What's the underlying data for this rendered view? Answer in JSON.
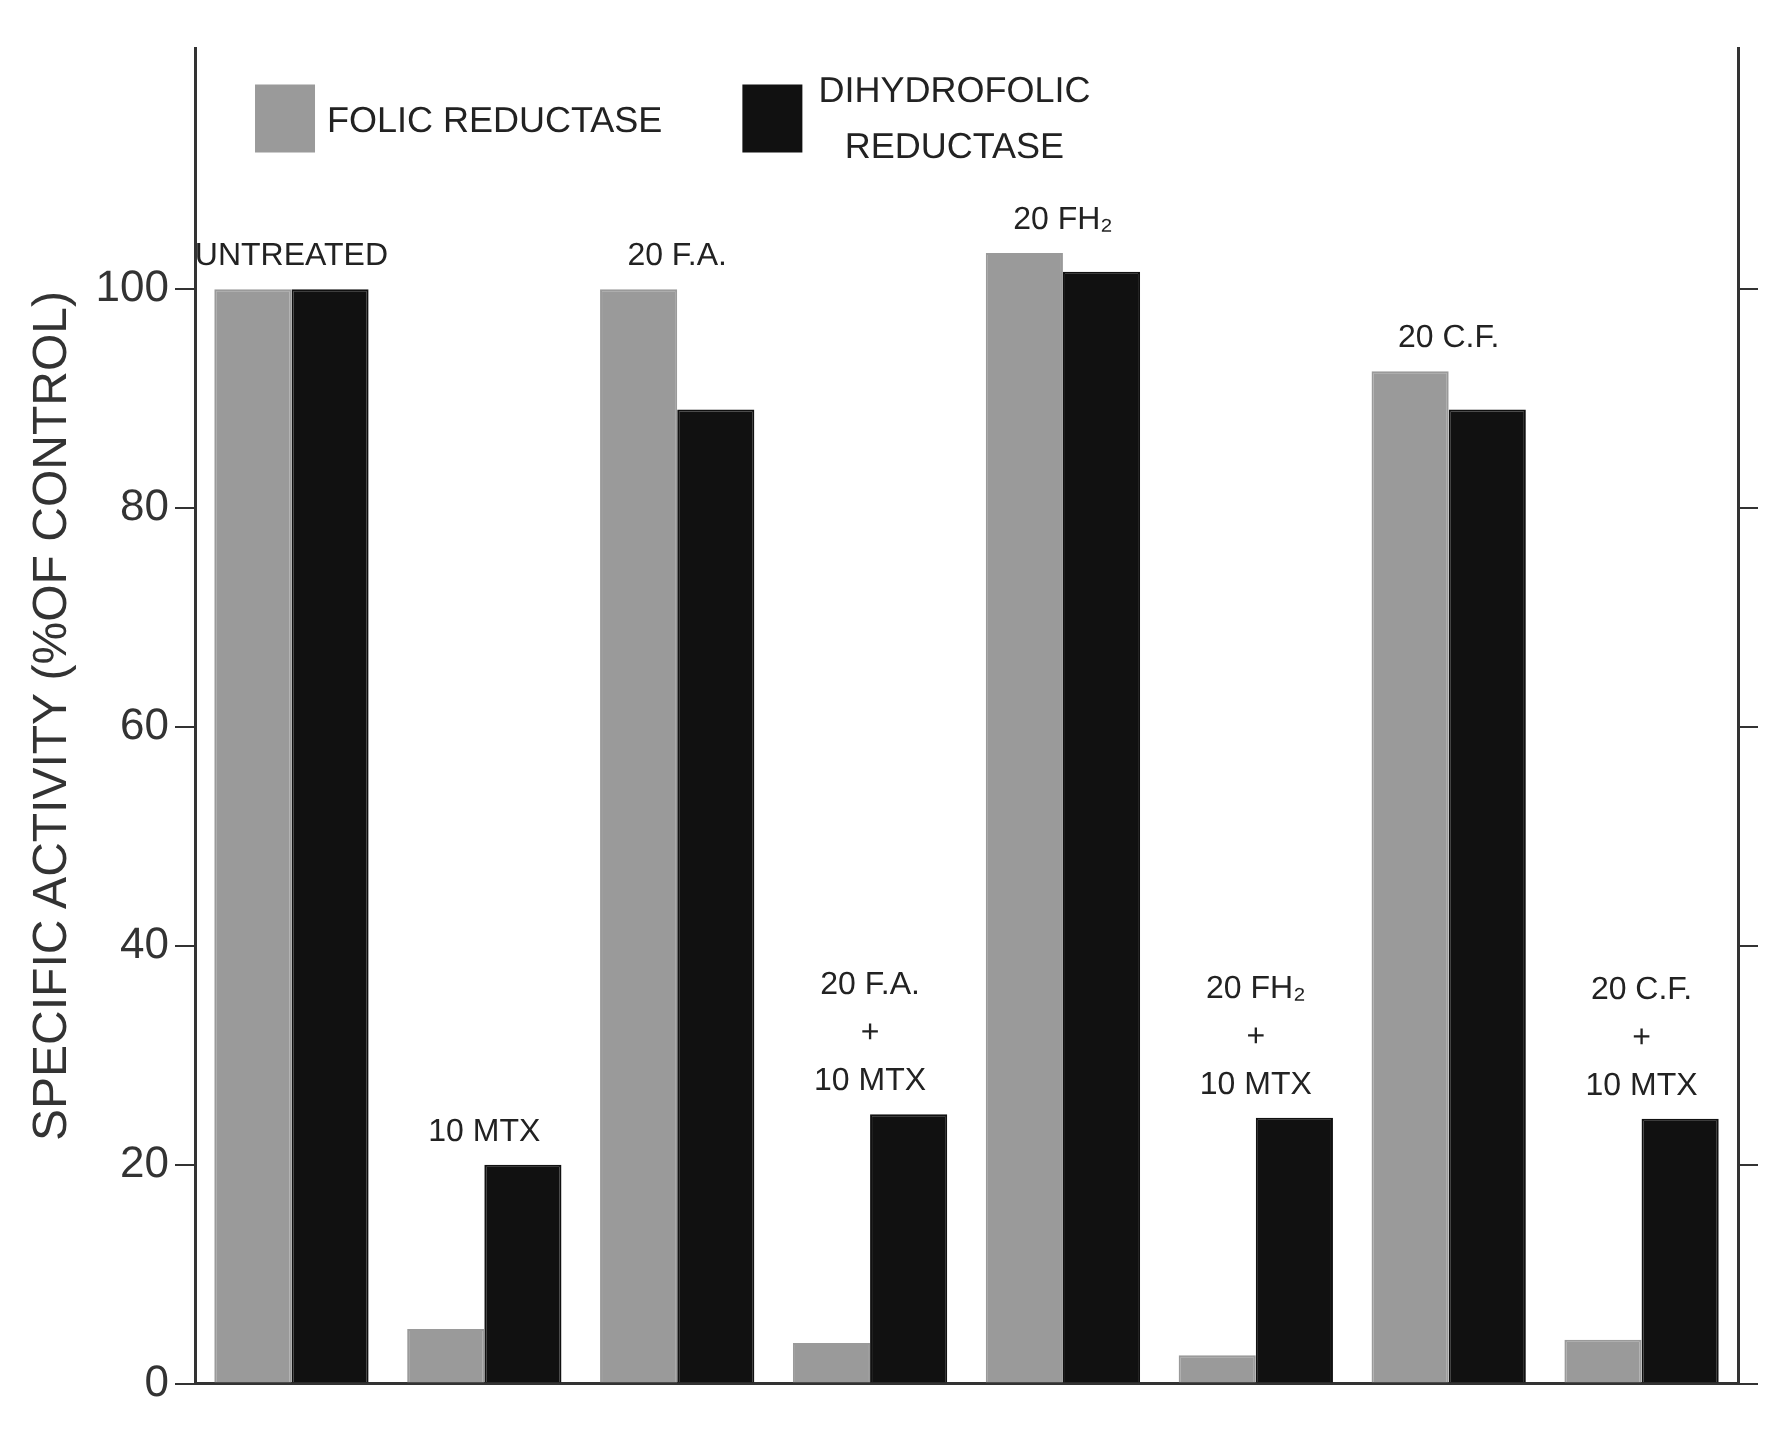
{
  "chart_data": {
    "type": "bar",
    "ylabel": "SPECIFIC ACTIVITY (%OF CONTROL)",
    "categories": [
      "UNTREATED",
      "10 MTX",
      "20 F.A.",
      "20 F.A.\n+\n10 MTX",
      "20 FH₂",
      "20 FH₂\n+\n10 MTX",
      "20 C.F.",
      "20 C.F.\n+\n10 MTX"
    ],
    "series": [
      {
        "name": "FOLIC REDUCTASE",
        "color": "#9a9a9a",
        "values": [
          100,
          5,
          100,
          3.7,
          103.3,
          2.6,
          92.5,
          4
        ]
      },
      {
        "name": "DIHYDROFOLIC REDUCTASE",
        "color": "#111111",
        "values": [
          100,
          20,
          89,
          24.6,
          101.6,
          24.3,
          89,
          24.2
        ]
      }
    ],
    "ylim": [
      0,
      122
    ],
    "yticks": [
      0,
      20,
      40,
      60,
      80,
      100
    ],
    "grid": false,
    "legend": "top left"
  }
}
